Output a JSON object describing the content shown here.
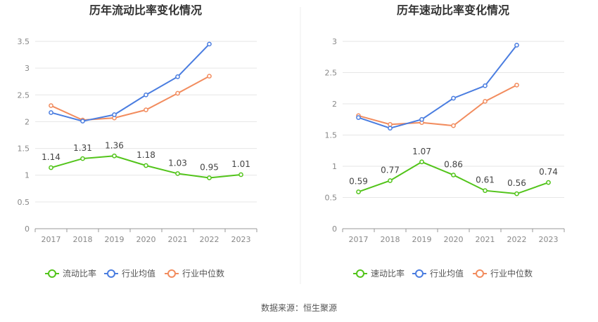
{
  "chart_data": [
    {
      "type": "line",
      "title": "历年流动比率变化情况",
      "x": [
        "2017",
        "2018",
        "2019",
        "2020",
        "2021",
        "2022",
        "2023"
      ],
      "ylim": [
        0,
        3.5
      ],
      "yticks": [
        "0",
        "0.5",
        "1",
        "1.5",
        "2",
        "2.5",
        "3",
        "3.5"
      ],
      "grid": true,
      "legend_position": "bottom",
      "series": [
        {
          "name": "流动比率",
          "color": "#52c41a",
          "values": [
            1.14,
            1.31,
            1.36,
            1.18,
            1.03,
            0.95,
            1.01
          ],
          "labels": [
            "1.14",
            "1.31",
            "1.36",
            "1.18",
            "1.03",
            "0.95",
            "1.01"
          ]
        },
        {
          "name": "行业均值",
          "color": "#4a7de0",
          "values": [
            2.17,
            2.01,
            2.13,
            2.5,
            2.84,
            3.45,
            null
          ]
        },
        {
          "name": "行业中位数",
          "color": "#f28c5e",
          "values": [
            2.3,
            2.03,
            2.07,
            2.22,
            2.53,
            2.85,
            null
          ]
        }
      ]
    },
    {
      "type": "line",
      "title": "历年速动比率变化情况",
      "x": [
        "2017",
        "2018",
        "2019",
        "2020",
        "2021",
        "2022",
        "2023"
      ],
      "ylim": [
        0,
        3
      ],
      "yticks": [
        "0",
        "0.5",
        "1",
        "1.5",
        "2",
        "2.5",
        "3"
      ],
      "grid": true,
      "legend_position": "bottom",
      "series": [
        {
          "name": "速动比率",
          "color": "#52c41a",
          "values": [
            0.59,
            0.77,
            1.07,
            0.86,
            0.61,
            0.56,
            0.74
          ],
          "labels": [
            "0.59",
            "0.77",
            "1.07",
            "0.86",
            "0.61",
            "0.56",
            "0.74"
          ]
        },
        {
          "name": "行业均值",
          "color": "#4a7de0",
          "values": [
            1.78,
            1.61,
            1.75,
            2.09,
            2.29,
            2.94,
            null
          ]
        },
        {
          "name": "行业中位数",
          "color": "#f28c5e",
          "values": [
            1.81,
            1.67,
            1.7,
            1.65,
            2.04,
            2.3,
            null
          ]
        }
      ]
    }
  ],
  "source": "数据来源：恒生聚源"
}
